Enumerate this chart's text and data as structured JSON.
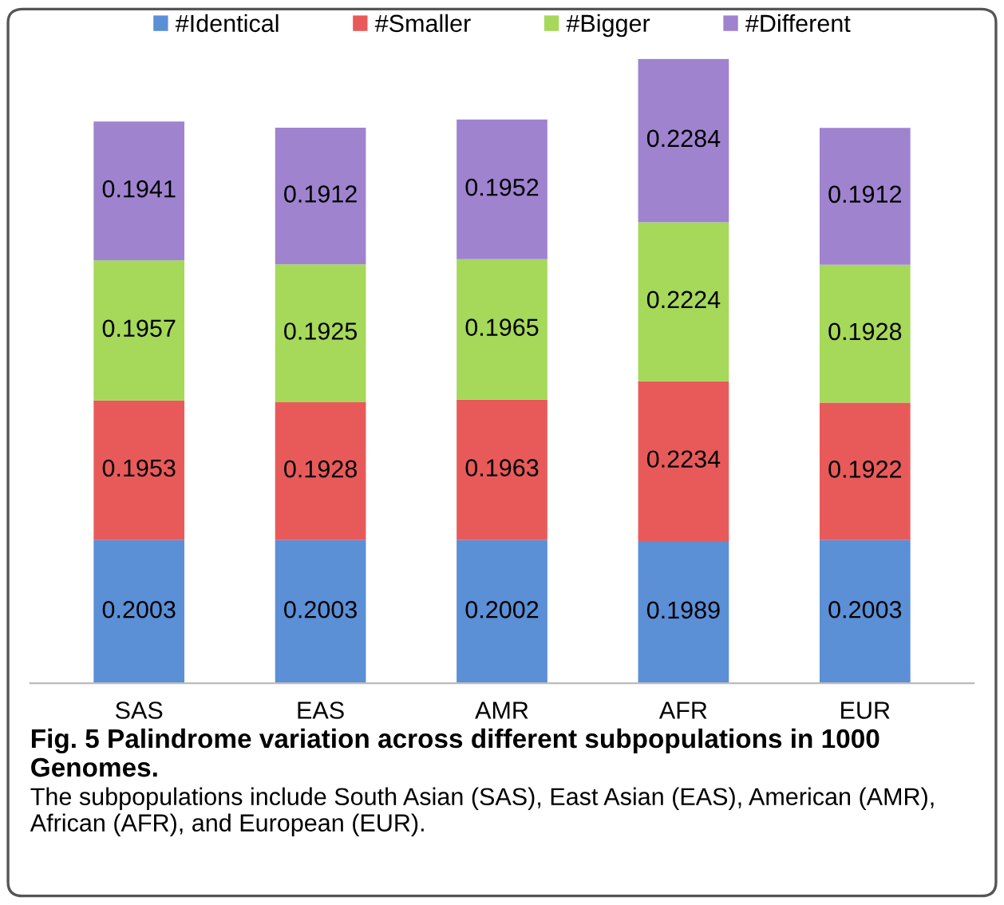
{
  "chart_data": {
    "type": "bar",
    "stacked": true,
    "data_labels": true,
    "legend": "top",
    "grid": false,
    "categories": [
      "SAS",
      "EAS",
      "AMR",
      "AFR",
      "EUR"
    ],
    "series": [
      {
        "name": "#Identical",
        "color": "#5b8fd6",
        "values": [
          0.2003,
          0.2003,
          0.2002,
          0.1989,
          0.2003
        ]
      },
      {
        "name": "#Smaller",
        "color": "#e85a5a",
        "values": [
          0.1953,
          0.1928,
          0.1963,
          0.2234,
          0.1922
        ]
      },
      {
        "name": "#Bigger",
        "color": "#a6d85a",
        "values": [
          0.1957,
          0.1925,
          0.1965,
          0.2224,
          0.1928
        ]
      },
      {
        "name": "#Different",
        "color": "#9f83cf",
        "values": [
          0.1941,
          0.1912,
          0.1952,
          0.2284,
          0.1912
        ]
      }
    ],
    "annotations": [
      "Fig. 5 Palindrome variation across different subpopulations in 1000 Genomes.",
      "The subpopulations include South Asian (SAS), East Asian (EAS), American (AMR), African (AFR), and European (EUR)."
    ]
  }
}
